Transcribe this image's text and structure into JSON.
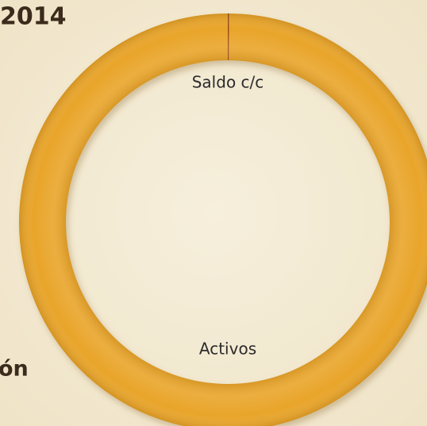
{
  "chart_data": {
    "type": "pie",
    "title": "2014",
    "annotations": [
      "ón"
    ],
    "categories": [
      "Saldo c/c",
      "Activos"
    ],
    "values": [
      0.1,
      99.9
    ],
    "colors": [
      "#9c4a16",
      "#e9a52c"
    ],
    "donut": true
  }
}
